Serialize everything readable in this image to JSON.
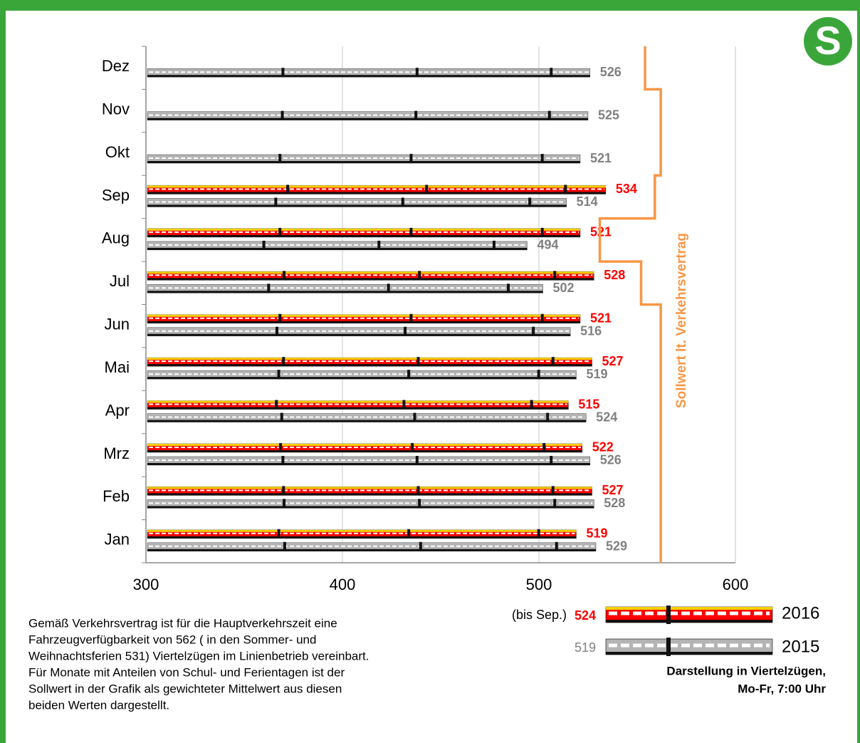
{
  "chart_data": {
    "type": "bar",
    "categories": [
      "Jan",
      "Feb",
      "Mrz",
      "Apr",
      "Mai",
      "Jun",
      "Jul",
      "Aug",
      "Sep",
      "Okt",
      "Nov",
      "Dez"
    ],
    "series": [
      {
        "name": "2016",
        "color": "#ff0000",
        "average": 524,
        "average_note": "(bis Sep.)",
        "values": [
          519,
          527,
          522,
          515,
          527,
          521,
          528,
          521,
          534,
          null,
          null,
          null
        ]
      },
      {
        "name": "2015",
        "color": "#808080",
        "average": 519,
        "values": [
          529,
          528,
          526,
          524,
          519,
          516,
          502,
          494,
          514,
          521,
          525,
          526
        ]
      }
    ],
    "target": {
      "name": "Sollwert lt. Verkehrsvertrag",
      "color": "#f79646",
      "values": [
        562,
        562,
        562,
        562,
        562,
        562,
        552,
        531,
        559,
        562,
        562,
        554
      ]
    },
    "xlim": [
      300,
      600
    ],
    "xticks": [
      300,
      400,
      500,
      600
    ],
    "grid": true,
    "legend_note": [
      "Darstellung in Viertelzügen,",
      "Mo-Fr, 7:00 Uhr"
    ],
    "footnote": [
      "Gemäß Verkehrsvertrag ist für die Hauptverkehrszeit eine",
      "Fahrzeugverfügbarkeit von 562 ( in den Sommer- und",
      "Weihnachtsferien 531) Viertelzügen im Linienbetrieb vereinbart.",
      "Für Monate mit Anteilen von Schul- und Ferientagen ist der",
      "Sollwert in der Grafik als gewichteter Mittelwert aus diesen",
      "beiden Werten dargestellt."
    ],
    "logo": "S"
  }
}
